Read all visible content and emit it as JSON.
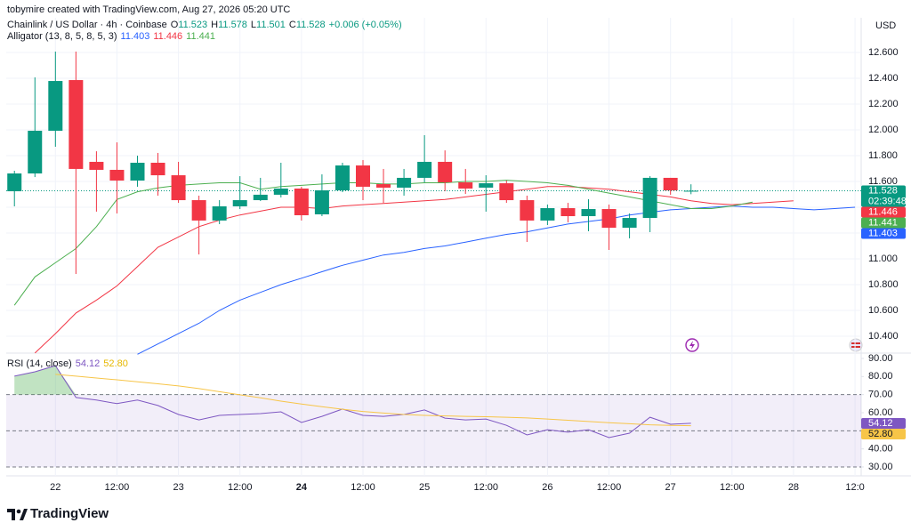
{
  "watermark": "tobymire created with TradingView.com, Aug 27, 2026 05:20 UTC",
  "logo": "TradingView",
  "chart_data": [
    {
      "type": "candlestick",
      "title": "Chainlink / US Dollar · 4h · Coinbase",
      "currency": "USD",
      "ohlc_letters": [
        "O",
        "H",
        "L",
        "C"
      ],
      "ohlc_values": [
        11.523,
        11.578,
        11.501,
        11.528
      ],
      "change": {
        "value": 0.006,
        "label": "+0.006 (+0.05%)"
      },
      "last_price": 11.528,
      "countdown": "02:39:48",
      "up_color": "#089981",
      "down_color": "#f23645",
      "open": [
        11.524,
        11.662,
        11.993,
        12.386,
        11.752,
        11.69,
        11.607,
        11.745,
        11.648,
        11.455,
        11.297,
        11.407,
        11.455,
        11.497,
        11.545,
        11.345,
        11.531,
        11.724,
        11.579,
        11.552,
        11.628,
        11.752,
        11.593,
        11.552,
        11.586,
        11.455,
        11.297,
        11.393,
        11.331,
        11.386,
        11.241,
        11.317,
        11.628,
        11.523
      ],
      "high": [
        11.683,
        12.407,
        12.607,
        12.607,
        11.834,
        11.903,
        11.8,
        11.821,
        11.752,
        11.49,
        11.455,
        11.641,
        11.628,
        11.745,
        11.559,
        11.655,
        11.745,
        11.766,
        11.697,
        11.697,
        11.959,
        11.841,
        11.697,
        11.648,
        11.607,
        11.49,
        11.421,
        11.434,
        11.462,
        11.421,
        11.352,
        11.641,
        11.628,
        11.578
      ],
      "low": [
        11.407,
        11.634,
        11.869,
        10.883,
        11.366,
        11.352,
        11.559,
        11.49,
        11.434,
        11.034,
        11.269,
        11.386,
        11.448,
        11.476,
        11.297,
        11.331,
        11.517,
        11.455,
        11.434,
        11.49,
        11.593,
        11.524,
        11.503,
        11.366,
        11.434,
        11.131,
        11.262,
        11.283,
        11.214,
        11.069,
        11.159,
        11.207,
        11.497,
        11.501
      ],
      "close": [
        11.662,
        11.993,
        12.379,
        11.697,
        11.69,
        11.607,
        11.745,
        11.648,
        11.455,
        11.297,
        11.407,
        11.455,
        11.497,
        11.545,
        11.338,
        11.531,
        11.724,
        11.559,
        11.552,
        11.628,
        11.752,
        11.593,
        11.545,
        11.586,
        11.455,
        11.297,
        11.393,
        11.331,
        11.386,
        11.241,
        11.317,
        11.628,
        11.531,
        11.528
      ],
      "indicator": {
        "name": "Alligator (13, 8, 5, 8, 5, 3)",
        "series": [
          {
            "color": "#2962ff",
            "last": 11.403,
            "values": [
              null,
              null,
              null,
              null,
              null,
              null,
              10.26,
              10.34,
              10.42,
              10.5,
              10.6,
              10.68,
              10.74,
              10.8,
              10.85,
              10.9,
              10.95,
              10.99,
              11.03,
              11.05,
              11.08,
              11.1,
              11.13,
              11.16,
              11.19,
              11.21,
              11.24,
              11.27,
              11.29,
              11.31,
              11.34,
              11.36,
              11.38,
              11.39,
              11.4,
              11.41,
              11.4,
              11.4,
              11.39,
              11.38,
              11.39,
              11.4
            ]
          },
          {
            "color": "#f23645",
            "last": 11.446,
            "values": [
              null,
              10.27,
              10.42,
              10.58,
              10.68,
              10.79,
              10.94,
              11.09,
              11.17,
              11.25,
              11.3,
              11.34,
              11.37,
              11.4,
              11.4,
              11.39,
              11.41,
              11.42,
              11.43,
              11.44,
              11.45,
              11.46,
              11.48,
              11.5,
              11.52,
              11.54,
              11.56,
              11.56,
              11.55,
              11.54,
              11.52,
              11.5,
              11.48,
              11.45,
              11.43,
              11.42,
              11.43,
              11.44,
              11.45
            ]
          },
          {
            "color": "#4caf50",
            "last": 11.441,
            "values": [
              10.64,
              10.86,
              10.97,
              11.08,
              11.25,
              11.46,
              11.52,
              11.55,
              11.57,
              11.58,
              11.59,
              11.59,
              11.54,
              11.56,
              11.57,
              11.58,
              11.59,
              11.59,
              11.58,
              11.58,
              11.59,
              11.59,
              11.6,
              11.6,
              11.61,
              11.6,
              11.59,
              11.57,
              11.54,
              11.51,
              11.48,
              11.45,
              11.42,
              11.39,
              11.39,
              11.41,
              11.44
            ]
          }
        ]
      },
      "xlim": [
        -0.4,
        41.3
      ],
      "ylim": [
        10.269,
        12.869
      ],
      "yticks": [
        {
          "value": 10.4,
          "label": "10.400"
        },
        {
          "value": 10.6,
          "label": "10.600"
        },
        {
          "value": 10.8,
          "label": "10.800"
        },
        {
          "value": 11,
          "label": "11.000"
        },
        {
          "value": 11.2,
          "label": "11.200"
        },
        {
          "value": 11.4,
          "label": "11.400"
        },
        {
          "value": 11.6,
          "label": "11.600"
        },
        {
          "value": 11.8,
          "label": "11.800"
        },
        {
          "value": 12,
          "label": "12.000"
        },
        {
          "value": 12.2,
          "label": "12.200"
        },
        {
          "value": 12.4,
          "label": "12.400"
        },
        {
          "value": 12.6,
          "label": "12.600"
        }
      ],
      "xticks": [
        {
          "value": 2,
          "label": "22"
        },
        {
          "value": 5,
          "label": "12:00"
        },
        {
          "value": 8,
          "label": "23"
        },
        {
          "value": 11,
          "label": "12:00"
        },
        {
          "value": 14,
          "label": "24"
        },
        {
          "value": 17,
          "label": "12:00"
        },
        {
          "value": 20,
          "label": "25"
        },
        {
          "value": 23,
          "label": "12:00"
        },
        {
          "value": 26,
          "label": "26"
        },
        {
          "value": 29,
          "label": "12:00"
        },
        {
          "value": 32,
          "label": "27"
        },
        {
          "value": 35,
          "label": "12:00"
        },
        {
          "value": 38,
          "label": "28"
        },
        {
          "value": 41,
          "label": "12:0"
        }
      ],
      "grid": true
    },
    {
      "type": "line",
      "title": "RSI (14, close)",
      "series": [
        {
          "color": "#7e57c2",
          "last": 54.12,
          "values": [
            80.2,
            82.6,
            86,
            68.4,
            67,
            65,
            67,
            64,
            59,
            56,
            58.5,
            59,
            59.5,
            60.5,
            54.6,
            58,
            62,
            58.5,
            58,
            59,
            61.5,
            57,
            56,
            56.5,
            53,
            47.7,
            50.6,
            49.2,
            50.6,
            46.2,
            48.7,
            57.5,
            53.6,
            54.12
          ]
        },
        {
          "color": "#f7c548",
          "last": {
            "value": 52.8,
            "label": "52.80"
          },
          "values": [
            null,
            null,
            81.2,
            80.2,
            79.2,
            78.2,
            77.1,
            76,
            74.8,
            73.3,
            71.6,
            69.9,
            68.2,
            66.4,
            64.8,
            63.3,
            61.9,
            60.7,
            59.8,
            59,
            58.5,
            58.2,
            58,
            57.8,
            57.5,
            57.1,
            56.5,
            55.8,
            55.1,
            54.5,
            53.9,
            53.3,
            53,
            52.8
          ]
        }
      ],
      "levels": [
        70,
        50,
        30
      ],
      "band": [
        30,
        70
      ],
      "ylim": [
        25.07,
        92.95
      ],
      "yticks": [
        {
          "value": 30,
          "label": "30.00"
        },
        {
          "value": 40,
          "label": "40.00"
        },
        {
          "value": 50,
          "label": "50.00"
        },
        {
          "value": 60,
          "label": "60.00"
        },
        {
          "value": 70,
          "label": "70.00"
        },
        {
          "value": 80,
          "label": "80.00"
        },
        {
          "value": 90,
          "label": "90.00"
        }
      ]
    }
  ]
}
